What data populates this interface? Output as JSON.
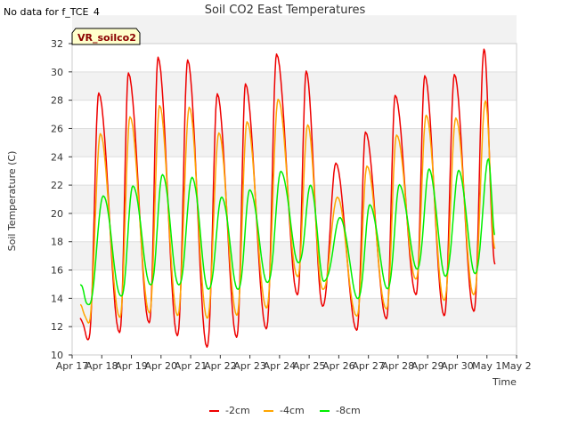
{
  "header": {
    "note": "No data for f_TCE_4"
  },
  "chart_data": {
    "type": "line",
    "title": "Soil CO2 East Temperatures",
    "xlabel": "Time",
    "ylabel": "Soil Temperature (C)",
    "site_label": "VR_soilco2",
    "ylim": [
      10,
      32
    ],
    "yticks": [
      10,
      12,
      14,
      16,
      18,
      20,
      22,
      24,
      26,
      28,
      30,
      32
    ],
    "xlim": [
      0,
      15
    ],
    "xticks": [
      {
        "x": 0,
        "label": "Apr 17"
      },
      {
        "x": 1,
        "label": "Apr 18"
      },
      {
        "x": 2,
        "label": "Apr 19"
      },
      {
        "x": 3,
        "label": "Apr 20"
      },
      {
        "x": 4,
        "label": "Apr 21"
      },
      {
        "x": 5,
        "label": "Apr 22"
      },
      {
        "x": 6,
        "label": "Apr 23"
      },
      {
        "x": 7,
        "label": "Apr 24"
      },
      {
        "x": 8,
        "label": "Apr 25"
      },
      {
        "x": 9,
        "label": "Apr 26"
      },
      {
        "x": 10,
        "label": "Apr 27"
      },
      {
        "x": 11,
        "label": "Apr 28"
      },
      {
        "x": 12,
        "label": "Apr 29"
      },
      {
        "x": 13,
        "label": "Apr 30"
      },
      {
        "x": 14,
        "label": "May 1"
      },
      {
        "x": 15,
        "label": "May 2"
      }
    ],
    "grid": true,
    "legend_position": "bottom",
    "series": [
      {
        "name": "-2cm",
        "color": "#ee0000",
        "start": 12.6,
        "end": 16.4,
        "minima": [
          [
            0.55,
            11.1
          ],
          [
            1.6,
            11.6
          ],
          [
            2.6,
            12.3
          ],
          [
            3.55,
            11.4
          ],
          [
            4.55,
            10.6
          ],
          [
            5.55,
            11.3
          ],
          [
            6.55,
            11.9
          ],
          [
            7.6,
            14.3
          ],
          [
            8.45,
            13.5
          ],
          [
            9.6,
            11.8
          ],
          [
            10.6,
            12.6
          ],
          [
            11.6,
            14.3
          ],
          [
            12.55,
            12.8
          ],
          [
            13.55,
            13.1
          ]
        ],
        "maxima": [
          [
            0.9,
            28.5
          ],
          [
            1.9,
            29.9
          ],
          [
            2.9,
            31.0
          ],
          [
            3.9,
            30.8
          ],
          [
            4.9,
            28.4
          ],
          [
            5.85,
            29.1
          ],
          [
            6.9,
            31.2
          ],
          [
            7.9,
            30.0
          ],
          [
            8.9,
            23.5
          ],
          [
            9.9,
            25.7
          ],
          [
            10.9,
            28.3
          ],
          [
            11.9,
            29.7
          ],
          [
            12.9,
            29.8
          ],
          [
            13.9,
            31.6
          ]
        ]
      },
      {
        "name": "-4cm",
        "color": "#ffa500",
        "start": 13.5,
        "end": 17.5,
        "minima": [
          [
            0.55,
            12.3
          ],
          [
            1.6,
            12.7
          ],
          [
            2.6,
            13.0
          ],
          [
            3.55,
            12.8
          ],
          [
            4.55,
            12.6
          ],
          [
            5.55,
            12.8
          ],
          [
            6.55,
            13.3
          ],
          [
            7.6,
            15.5
          ],
          [
            8.45,
            14.6
          ],
          [
            9.6,
            12.7
          ],
          [
            10.6,
            13.2
          ],
          [
            11.6,
            15.3
          ],
          [
            12.55,
            13.8
          ],
          [
            13.55,
            14.2
          ]
        ],
        "maxima": [
          [
            0.95,
            25.6
          ],
          [
            1.95,
            26.8
          ],
          [
            2.95,
            27.6
          ],
          [
            3.95,
            27.5
          ],
          [
            4.95,
            25.7
          ],
          [
            5.9,
            26.5
          ],
          [
            6.95,
            28.1
          ],
          [
            7.95,
            26.3
          ],
          [
            8.95,
            21.2
          ],
          [
            9.95,
            23.4
          ],
          [
            10.95,
            25.6
          ],
          [
            11.95,
            27.0
          ],
          [
            12.95,
            26.8
          ],
          [
            13.95,
            28.0
          ]
        ]
      },
      {
        "name": "-8cm",
        "color": "#00ee00",
        "start": 15.0,
        "end": 18.5,
        "minima": [
          [
            0.55,
            13.5
          ],
          [
            1.65,
            14.1
          ],
          [
            2.65,
            14.9
          ],
          [
            3.6,
            14.9
          ],
          [
            4.6,
            14.6
          ],
          [
            5.6,
            14.6
          ],
          [
            6.6,
            15.1
          ],
          [
            7.65,
            16.5
          ],
          [
            8.5,
            15.2
          ],
          [
            9.65,
            14.0
          ],
          [
            10.65,
            14.7
          ],
          [
            11.65,
            16.1
          ],
          [
            12.6,
            15.6
          ],
          [
            13.6,
            15.8
          ]
        ],
        "maxima": [
          [
            1.05,
            21.3
          ],
          [
            2.05,
            22.0
          ],
          [
            3.05,
            22.8
          ],
          [
            4.05,
            22.6
          ],
          [
            5.05,
            21.2
          ],
          [
            6.0,
            21.7
          ],
          [
            7.05,
            23.0
          ],
          [
            8.05,
            22.0
          ],
          [
            9.05,
            19.7
          ],
          [
            10.05,
            20.6
          ],
          [
            11.05,
            22.0
          ],
          [
            12.05,
            23.1
          ],
          [
            13.05,
            23.0
          ],
          [
            14.05,
            23.8
          ]
        ]
      }
    ]
  }
}
